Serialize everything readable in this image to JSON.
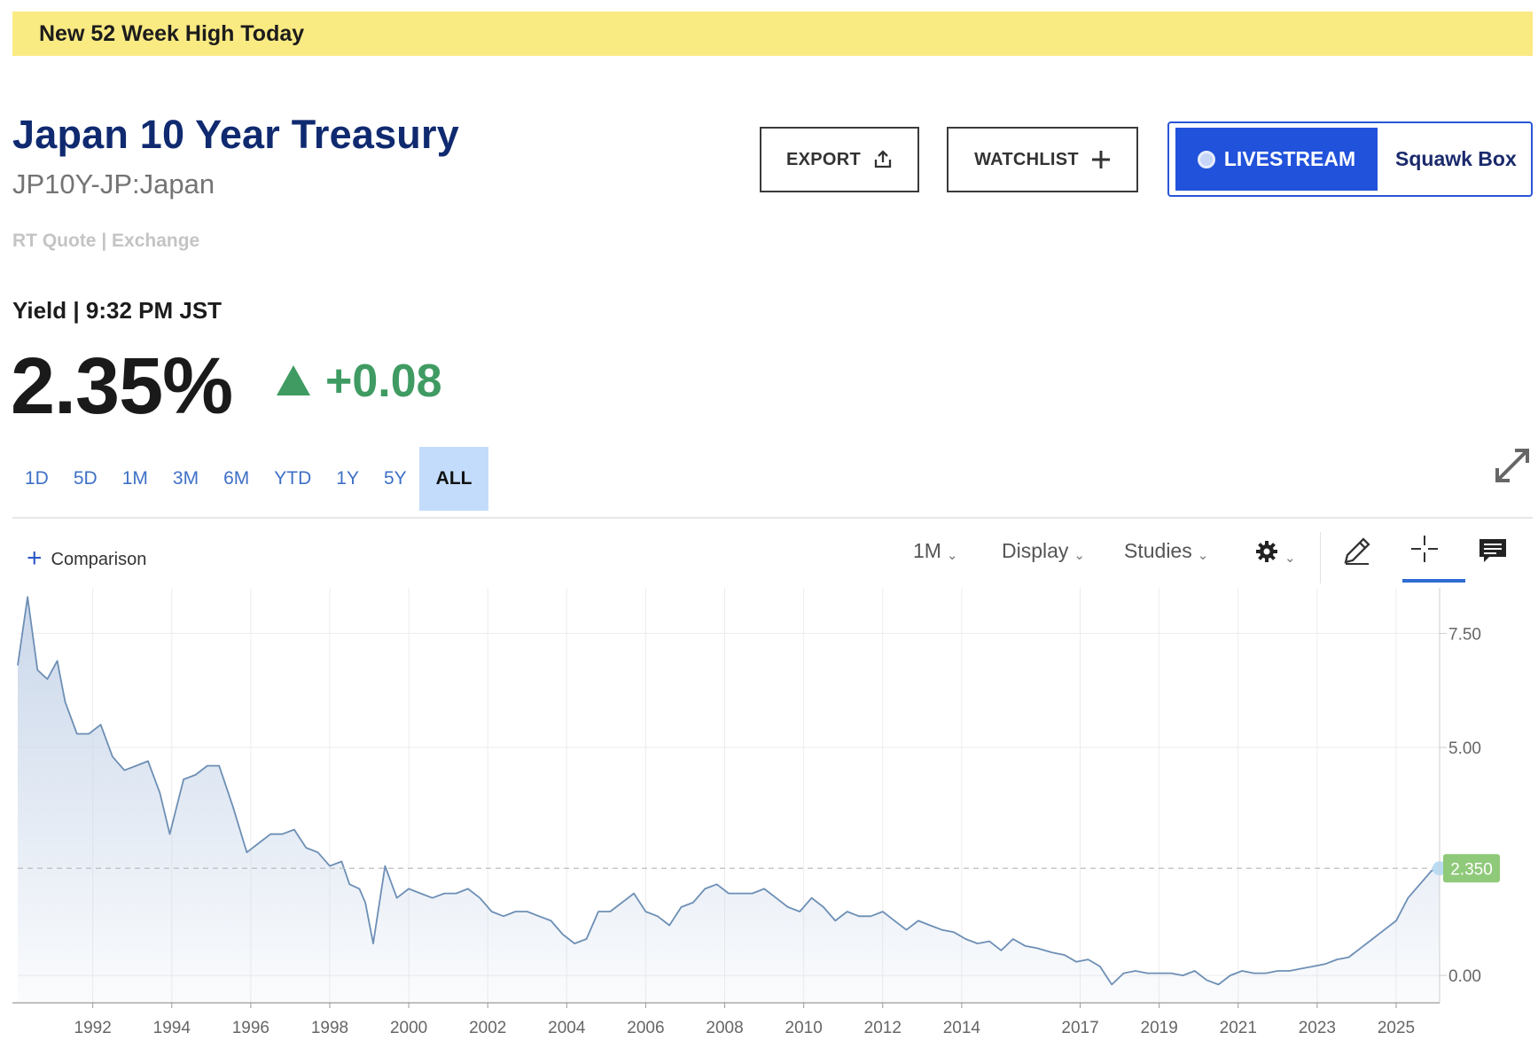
{
  "banner": {
    "text": "New 52 Week High Today"
  },
  "header": {
    "title": "Japan 10 Year Treasury",
    "symbol": "JP10Y-JP:Japan",
    "quote_source": "RT Quote | Exchange"
  },
  "actions": {
    "export_label": "EXPORT",
    "watchlist_label": "WATCHLIST",
    "livestream_label": "LIVESTREAM",
    "show_name": "Squawk Box"
  },
  "quote": {
    "label": "Yield | 9:32 PM JST",
    "value": "2.35%",
    "change": "+0.08",
    "change_direction": "up",
    "change_color": "#3f9b62"
  },
  "ranges": {
    "items": [
      "1D",
      "5D",
      "1M",
      "3M",
      "6M",
      "YTD",
      "1Y",
      "5Y",
      "ALL"
    ],
    "selected": "ALL"
  },
  "toolbar": {
    "comparison_label": "Comparison",
    "interval_label": "1M",
    "display_label": "Display",
    "studies_label": "Studies",
    "icons": [
      "settings-gear-icon",
      "draw-pencil-icon",
      "crosshair-icon",
      "comment-icon",
      "expand-icon"
    ]
  },
  "chart_data": {
    "type": "area",
    "title": "",
    "xlabel": "",
    "ylabel": "",
    "ylim": [
      -0.6,
      8.5
    ],
    "xlim": [
      1990.1,
      2026.1
    ],
    "yticks": [
      "7.50",
      "5.00",
      "0.00"
    ],
    "ytick_values": [
      7.5,
      5.0,
      0.0
    ],
    "xticks": [
      "1992",
      "1994",
      "1996",
      "1998",
      "2000",
      "2002",
      "2004",
      "2006",
      "2008",
      "2010",
      "2012",
      "2014",
      "2017",
      "2019",
      "2021",
      "2023",
      "2025"
    ],
    "last_value_label": "2.350",
    "last_value": 2.35,
    "grid": true,
    "line_color": "#6d8fb5",
    "fill_color": "#c7d5e9",
    "series": [
      {
        "x": [
          1990.1,
          1990.35,
          1990.6,
          1990.85,
          1991.1,
          1991.3,
          1991.6,
          1991.9,
          1992.2,
          1992.5,
          1992.8,
          1993.1,
          1993.4,
          1993.7,
          1993.95,
          1994.3,
          1994.6,
          1994.9,
          1995.2,
          1995.55,
          1995.9,
          1996.2,
          1996.5,
          1996.8,
          1997.1,
          1997.4,
          1997.7,
          1998.0,
          1998.3,
          1998.5,
          1998.75,
          1998.9,
          1999.1,
          1999.4,
          1999.7,
          2000.0,
          2000.3,
          2000.6,
          2000.9,
          2001.2,
          2001.5,
          2001.8,
          2002.1,
          2002.4,
          2002.7,
          2003.0,
          2003.3,
          2003.6,
          2003.9,
          2004.2,
          2004.5,
          2004.8,
          2005.1,
          2005.4,
          2005.7,
          2006.0,
          2006.3,
          2006.6,
          2006.9,
          2007.2,
          2007.5,
          2007.8,
          2008.1,
          2008.4,
          2008.7,
          2009.0,
          2009.3,
          2009.6,
          2009.9,
          2010.2,
          2010.5,
          2010.8,
          2011.1,
          2011.4,
          2011.7,
          2012.0,
          2012.3,
          2012.6,
          2012.9,
          2013.2,
          2013.5,
          2013.8,
          2014.1,
          2014.4,
          2014.7,
          2015.0,
          2015.3,
          2015.6,
          2015.9,
          2016.3,
          2016.6,
          2016.9,
          2017.2,
          2017.5,
          2017.8,
          2018.1,
          2018.4,
          2018.7,
          2019.0,
          2019.3,
          2019.6,
          2019.9,
          2020.2,
          2020.5,
          2020.8,
          2021.1,
          2021.4,
          2021.7,
          2022.0,
          2022.3,
          2022.6,
          2022.9,
          2023.2,
          2023.5,
          2023.8,
          2024.1,
          2024.4,
          2024.7,
          2025.0,
          2025.3,
          2025.6,
          2025.9,
          2026.1
        ],
        "y": [
          6.8,
          8.3,
          6.7,
          6.5,
          6.9,
          6.0,
          5.3,
          5.3,
          5.5,
          4.8,
          4.5,
          4.6,
          4.7,
          4.0,
          3.1,
          4.3,
          4.4,
          4.6,
          4.6,
          3.7,
          2.7,
          2.9,
          3.1,
          3.1,
          3.2,
          2.8,
          2.7,
          2.4,
          2.5,
          2.0,
          1.9,
          1.6,
          0.7,
          2.4,
          1.7,
          1.9,
          1.8,
          1.7,
          1.8,
          1.8,
          1.9,
          1.7,
          1.4,
          1.3,
          1.4,
          1.4,
          1.3,
          1.2,
          0.9,
          0.7,
          0.8,
          1.4,
          1.4,
          1.6,
          1.8,
          1.4,
          1.3,
          1.1,
          1.5,
          1.6,
          1.9,
          2.0,
          1.8,
          1.8,
          1.8,
          1.9,
          1.7,
          1.5,
          1.4,
          1.7,
          1.5,
          1.2,
          1.4,
          1.3,
          1.3,
          1.4,
          1.2,
          1.0,
          1.2,
          1.1,
          1.0,
          0.95,
          0.8,
          0.7,
          0.75,
          0.55,
          0.8,
          0.65,
          0.6,
          0.5,
          0.45,
          0.3,
          0.35,
          0.2,
          -0.2,
          0.05,
          0.1,
          0.05,
          0.05,
          0.05,
          0.0,
          0.1,
          -0.1,
          -0.2,
          0.0,
          0.1,
          0.05,
          0.05,
          0.1,
          0.1,
          0.15,
          0.2,
          0.25,
          0.35,
          0.4,
          0.6,
          0.8,
          1.0,
          1.2,
          1.7,
          2.0,
          2.3,
          2.35
        ]
      }
    ]
  }
}
